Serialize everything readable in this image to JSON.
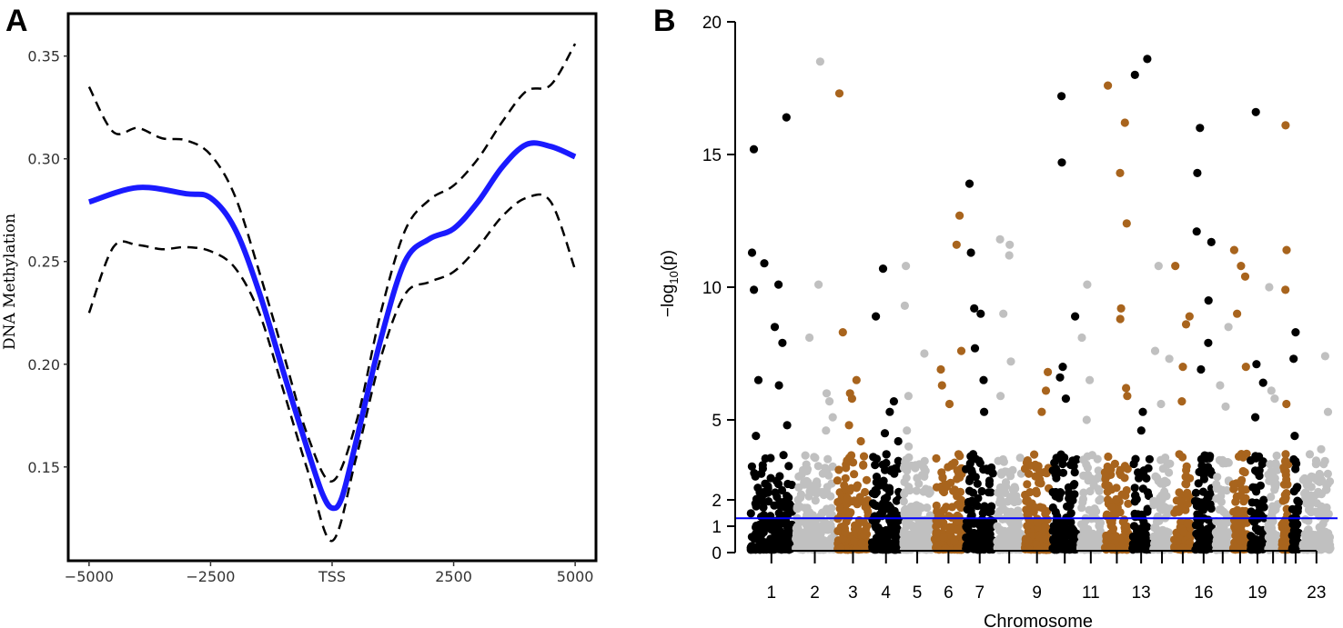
{
  "colors": {
    "mean_line": "#1a1aff",
    "ci_line": "#000000",
    "sig_line": "#0000ff",
    "chrom_palette": [
      "#000000",
      "#c0c0c0",
      "#a8641d"
    ]
  },
  "chart_data": [
    {
      "panel": "A",
      "type": "line",
      "title": "",
      "xlabel": "",
      "ylabel": "DNA Methylation",
      "xlim": [
        -5400,
        5400
      ],
      "ylim": [
        0.105,
        0.37
      ],
      "x_ticks": [
        -5000,
        -2500,
        0,
        2500,
        5000
      ],
      "x_tick_labels": [
        "−5000",
        "−2500",
        "TSS",
        "2500",
        "5000"
      ],
      "y_ticks": [
        0.15,
        0.2,
        0.25,
        0.3,
        0.35
      ],
      "y_tick_labels": [
        "0.15",
        "0.20",
        "0.25",
        "0.30",
        "0.35"
      ],
      "series": [
        {
          "name": "mean",
          "style": "solid",
          "x": [
            -5000,
            -4000,
            -3000,
            -2500,
            -2000,
            -1500,
            -1000,
            -500,
            -200,
            0,
            200,
            500,
            1000,
            1500,
            2000,
            2500,
            3000,
            3500,
            4000,
            4500,
            5000
          ],
          "y": [
            0.279,
            0.286,
            0.283,
            0.281,
            0.266,
            0.235,
            0.196,
            0.158,
            0.137,
            0.13,
            0.135,
            0.163,
            0.212,
            0.25,
            0.261,
            0.266,
            0.279,
            0.296,
            0.307,
            0.306,
            0.301
          ]
        },
        {
          "name": "upper",
          "style": "dashed",
          "x": [
            -5000,
            -4500,
            -4000,
            -3500,
            -3000,
            -2500,
            -2000,
            -1500,
            -1000,
            -500,
            0,
            500,
            1000,
            1500,
            2000,
            2500,
            3000,
            3500,
            4000,
            4500,
            5000
          ],
          "y": [
            0.335,
            0.313,
            0.315,
            0.31,
            0.309,
            0.302,
            0.282,
            0.245,
            0.205,
            0.165,
            0.143,
            0.172,
            0.225,
            0.265,
            0.28,
            0.287,
            0.3,
            0.318,
            0.333,
            0.336,
            0.356
          ]
        },
        {
          "name": "lower",
          "style": "dashed",
          "x": [
            -5000,
            -4500,
            -4000,
            -3500,
            -3000,
            -2500,
            -2000,
            -1500,
            -1000,
            -500,
            0,
            500,
            1000,
            1500,
            2000,
            2500,
            3000,
            3500,
            4000,
            4500,
            5000
          ],
          "y": [
            0.225,
            0.257,
            0.258,
            0.256,
            0.257,
            0.255,
            0.247,
            0.225,
            0.187,
            0.148,
            0.114,
            0.155,
            0.203,
            0.234,
            0.24,
            0.245,
            0.257,
            0.272,
            0.281,
            0.279,
            0.246
          ]
        }
      ]
    },
    {
      "panel": "B",
      "type": "scatter",
      "subtype": "manhattan",
      "title": "",
      "xlabel": "Chromosome",
      "ylabel": "−log10(p)",
      "ylabel_parts": [
        "−log",
        "10",
        "(p)"
      ],
      "ylim": [
        0,
        20
      ],
      "y_ticks": [
        0,
        1,
        2,
        5,
        10,
        15,
        20
      ],
      "y_tick_labels": [
        "0",
        "1",
        "2",
        "5",
        "10",
        "15",
        "20"
      ],
      "significance_threshold": 1.3,
      "chromosome_tick_labels": [
        "1",
        "2",
        "3",
        "4",
        "5",
        "6",
        "7",
        "9",
        "11",
        "13",
        "16",
        "19",
        "23"
      ],
      "chromosomes": [
        {
          "chrom": 1,
          "width": 1.3,
          "color": 0,
          "top": [
            15.2,
            16.4,
            11.3,
            10.9,
            10.1,
            9.9,
            8.5,
            7.9,
            6.5,
            6.3,
            4.8,
            4.4
          ]
        },
        {
          "chrom": 2,
          "width": 1.2,
          "color": 1,
          "top": [
            18.5,
            10.1,
            8.1,
            6.0,
            5.7,
            5.1,
            4.6
          ]
        },
        {
          "chrom": 3,
          "width": 1.0,
          "color": 2,
          "top": [
            17.3,
            8.3,
            6.5,
            6.0,
            5.8,
            4.8,
            4.2
          ]
        },
        {
          "chrom": 4,
          "width": 0.9,
          "color": 0,
          "top": [
            10.7,
            8.9,
            5.7,
            5.3,
            4.5,
            4.2
          ]
        },
        {
          "chrom": 5,
          "width": 0.9,
          "color": 1,
          "top": [
            10.8,
            9.3,
            7.5,
            5.9,
            4.6,
            4.0
          ]
        },
        {
          "chrom": 6,
          "width": 0.9,
          "color": 2,
          "top": [
            12.7,
            11.6,
            7.6,
            6.9,
            6.3,
            5.6
          ]
        },
        {
          "chrom": 7,
          "width": 0.9,
          "color": 0,
          "top": [
            13.9,
            11.3,
            9.2,
            9.0,
            7.7,
            6.5,
            5.3
          ]
        },
        {
          "chrom": 8,
          "width": 0.8,
          "color": 1,
          "top": [
            11.8,
            11.6,
            11.2,
            9.0,
            7.2,
            5.9
          ]
        },
        {
          "chrom": 9,
          "width": 0.8,
          "color": 2,
          "top": [
            6.8,
            6.1,
            5.3,
            3.7,
            3.0
          ]
        },
        {
          "chrom": 10,
          "width": 0.8,
          "color": 0,
          "top": [
            17.2,
            14.7,
            8.9,
            7.0,
            6.6,
            5.8
          ]
        },
        {
          "chrom": 11,
          "width": 0.7,
          "color": 1,
          "top": [
            10.1,
            8.1,
            6.5,
            5.0
          ]
        },
        {
          "chrom": 12,
          "width": 0.8,
          "color": 2,
          "top": [
            17.6,
            16.2,
            14.3,
            12.4,
            9.2,
            8.8,
            6.2,
            5.9
          ]
        },
        {
          "chrom": 13,
          "width": 0.6,
          "color": 0,
          "top": [
            18.6,
            18.0,
            5.3,
            4.6
          ]
        },
        {
          "chrom": 14,
          "width": 0.6,
          "color": 1,
          "top": [
            10.8,
            7.6,
            7.3,
            5.6
          ]
        },
        {
          "chrom": 15,
          "width": 0.6,
          "color": 2,
          "top": [
            10.8,
            8.9,
            8.6,
            7.0,
            5.7
          ]
        },
        {
          "chrom": 16,
          "width": 0.6,
          "color": 0,
          "top": [
            16.0,
            14.3,
            12.1,
            11.7,
            9.5,
            7.9,
            6.9
          ]
        },
        {
          "chrom": 17,
          "width": 0.5,
          "color": 1,
          "top": [
            8.5,
            6.3,
            5.5
          ]
        },
        {
          "chrom": 18,
          "width": 0.5,
          "color": 2,
          "top": [
            11.4,
            10.8,
            10.4,
            9.0,
            7.0
          ]
        },
        {
          "chrom": 19,
          "width": 0.5,
          "color": 0,
          "top": [
            16.6,
            7.1,
            6.4,
            5.1
          ]
        },
        {
          "chrom": 20,
          "width": 0.4,
          "color": 1,
          "top": [
            10.0,
            6.1,
            5.8
          ]
        },
        {
          "chrom": 21,
          "width": 0.3,
          "color": 2,
          "top": [
            16.1,
            11.4,
            9.9,
            5.6
          ]
        },
        {
          "chrom": 22,
          "width": 0.3,
          "color": 0,
          "top": [
            8.3,
            7.3,
            4.4
          ]
        },
        {
          "chrom": 23,
          "width": 0.9,
          "color": 1,
          "top": [
            7.4,
            5.3,
            3.9
          ]
        }
      ]
    }
  ]
}
